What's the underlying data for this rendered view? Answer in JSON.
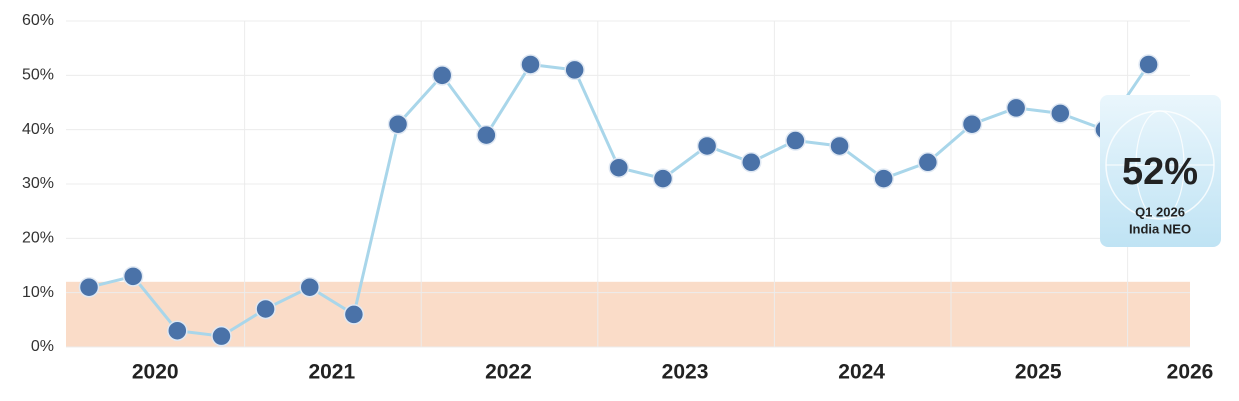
{
  "chart_data": {
    "type": "line",
    "categories": [
      null,
      null,
      null,
      null,
      null,
      null,
      null,
      null,
      null,
      null,
      null,
      null,
      null,
      null,
      null,
      null,
      null,
      null,
      null,
      null,
      null,
      null,
      null,
      null,
      null
    ],
    "year_labels": [
      "2020",
      "2021",
      "2022",
      "2023",
      "2024",
      "2025",
      "2026"
    ],
    "series": [
      {
        "color": "#a9d6ea",
        "marker_color": "#4a72a8",
        "values": [
          11,
          13,
          3,
          2,
          7,
          11,
          6,
          41,
          50,
          39,
          52,
          51,
          33,
          31,
          37,
          34,
          38,
          37,
          31,
          34,
          41,
          44,
          43,
          40,
          52
        ]
      }
    ],
    "ylim": [
      0,
      60
    ],
    "yticks": [
      {
        "value": 0,
        "label": "0%"
      },
      {
        "value": 10,
        "label": "10%"
      },
      {
        "value": 20,
        "label": "20%"
      },
      {
        "value": 30,
        "label": "30%"
      },
      {
        "value": 40,
        "label": "40%"
      },
      {
        "value": 50,
        "label": "50%"
      },
      {
        "value": 60,
        "label": "60%"
      }
    ],
    "grid": true,
    "band": {
      "from": 0,
      "to": 12,
      "color": "#f9d8c2"
    },
    "callout": {
      "value": 52,
      "label": "52%",
      "period": "Q1 2026",
      "name": "India NEO"
    }
  }
}
